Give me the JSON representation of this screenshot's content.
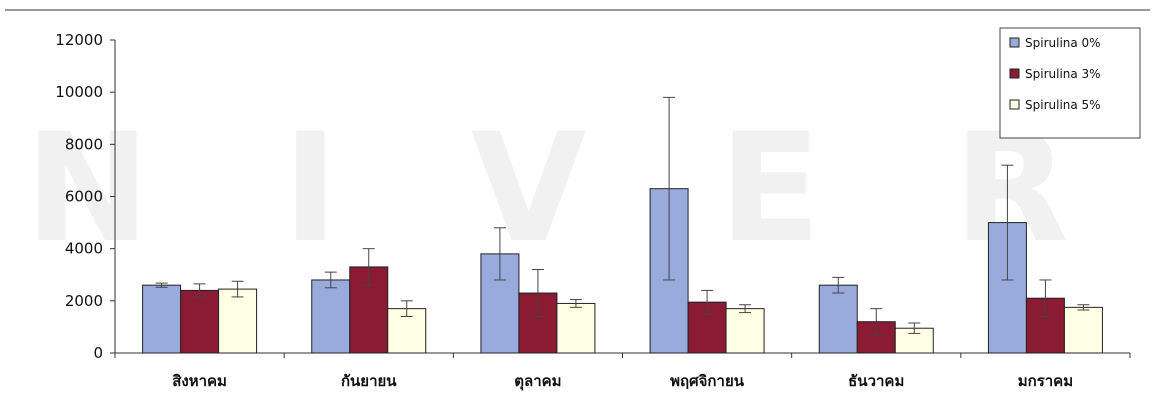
{
  "chart_data": {
    "type": "bar",
    "categories": [
      "สิงหาคม",
      "กันยายน",
      "ตุลาคม",
      "พฤศจิกายน",
      "ธันวาคม",
      "มกราคม"
    ],
    "series": [
      {
        "name": "Spirulina 0%",
        "color": "#99aadd",
        "values": [
          2600,
          2800,
          3800,
          6300,
          2600,
          5000
        ],
        "errors": [
          80,
          300,
          1000,
          3500,
          300,
          2200
        ]
      },
      {
        "name": "Spirulina 3%",
        "color": "#8b1a33",
        "values": [
          2400,
          3300,
          2300,
          1950,
          1200,
          2100
        ],
        "errors": [
          250,
          700,
          900,
          450,
          500,
          700
        ]
      },
      {
        "name": "Spirulina 5%",
        "color": "#ffffe6",
        "values": [
          2450,
          1700,
          1900,
          1700,
          950,
          1750
        ],
        "errors": [
          300,
          300,
          150,
          150,
          200,
          100
        ]
      }
    ],
    "ylim": [
      0,
      12000
    ],
    "yticks": [
      "0",
      "2000",
      "4000",
      "6000",
      "8000",
      "10000",
      "12000"
    ],
    "legend_position": "top-right",
    "grid": false,
    "watermark": "U N I V E R S"
  }
}
